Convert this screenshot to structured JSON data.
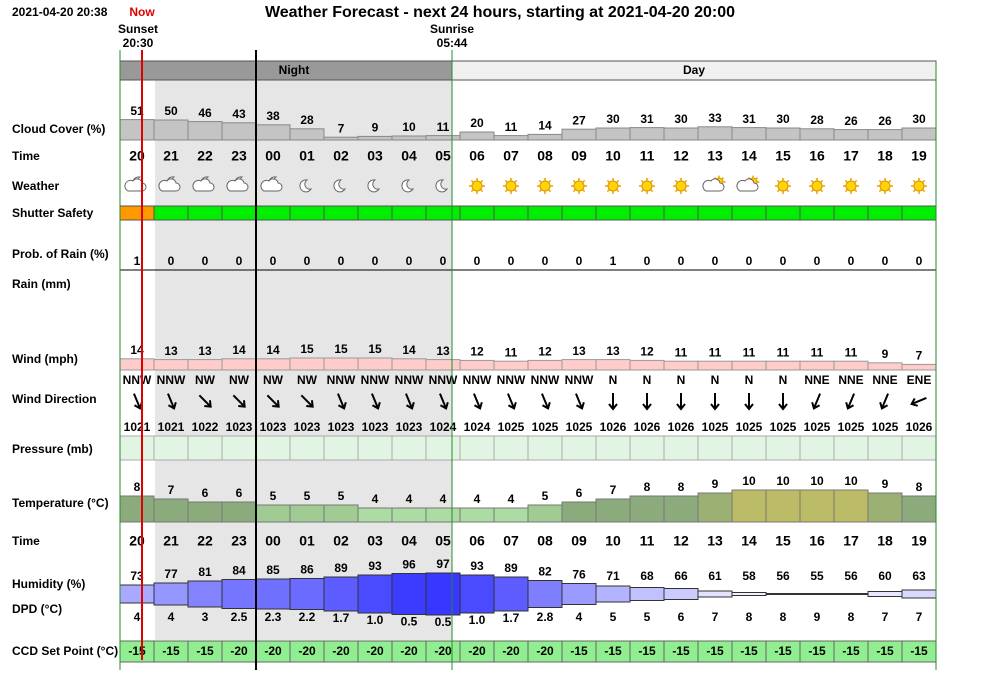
{
  "header": {
    "timestamp": "2021-04-20 20:38",
    "now": "Now",
    "title": "Weather Forecast - next 24 hours, starting at 2021-04-20 20:00"
  },
  "sunset": {
    "label": "Sunset",
    "time": "20:30"
  },
  "sunrise": {
    "label": "Sunrise",
    "time": "05:44"
  },
  "periods": {
    "night": "Night",
    "day": "Day"
  },
  "hours": [
    "20",
    "21",
    "22",
    "23",
    "00",
    "01",
    "02",
    "03",
    "04",
    "05",
    "06",
    "07",
    "08",
    "09",
    "10",
    "11",
    "12",
    "13",
    "14",
    "15",
    "16",
    "17",
    "18",
    "19"
  ],
  "rows": {
    "cloud_cover": {
      "label": "Cloud Cover (%)",
      "values": [
        51,
        50,
        46,
        43,
        38,
        28,
        7,
        9,
        10,
        11,
        20,
        11,
        14,
        27,
        30,
        31,
        30,
        33,
        31,
        30,
        28,
        26,
        26,
        30
      ]
    },
    "time": "Time",
    "weather": {
      "label": "Weather",
      "icons": [
        "partly-cloudy-night",
        "partly-cloudy-night",
        "partly-cloudy-night",
        "partly-cloudy-night",
        "partly-cloudy-night",
        "clear-night",
        "clear-night",
        "clear-night",
        "clear-night",
        "clear-night",
        "sunny",
        "sunny",
        "sunny",
        "sunny",
        "sunny",
        "sunny",
        "sunny",
        "partly-cloudy-day",
        "partly-cloudy-day",
        "sunny",
        "sunny",
        "sunny",
        "sunny",
        "sunny"
      ]
    },
    "shutter_safety": {
      "label": "Shutter Safety",
      "colors": [
        "#ff9900",
        "#00ee00",
        "#00ee00",
        "#00ee00",
        "#00ee00",
        "#00ee00",
        "#00ee00",
        "#00ee00",
        "#00ee00",
        "#00ee00",
        "#00ee00",
        "#00ee00",
        "#00ee00",
        "#00ee00",
        "#00ee00",
        "#00ee00",
        "#00ee00",
        "#00ee00",
        "#00ee00",
        "#00ee00",
        "#00ee00",
        "#00ee00",
        "#00ee00",
        "#00ee00"
      ]
    },
    "rain_probability": {
      "label": "Prob. of Rain (%)",
      "values": [
        1,
        0,
        0,
        0,
        0,
        0,
        0,
        0,
        0,
        0,
        0,
        0,
        0,
        0,
        1,
        0,
        0,
        0,
        0,
        0,
        0,
        0,
        0,
        0
      ]
    },
    "rain": {
      "label": "Rain (mm)"
    },
    "wind": {
      "label": "Wind (mph)",
      "values": [
        14,
        13,
        13,
        14,
        14,
        15,
        15,
        15,
        14,
        13,
        12,
        11,
        12,
        13,
        13,
        12,
        11,
        11,
        11,
        11,
        11,
        11,
        9,
        7
      ]
    },
    "wind_direction": {
      "label": "Wind Direction",
      "values": [
        "NNW",
        "NNW",
        "NW",
        "NW",
        "NW",
        "NW",
        "NNW",
        "NNW",
        "NNW",
        "NNW",
        "NNW",
        "NNW",
        "NNW",
        "NNW",
        "N",
        "N",
        "N",
        "N",
        "N",
        "N",
        "NNE",
        "NNE",
        "NNE",
        "ENE"
      ]
    },
    "pressure": {
      "label": "Pressure (mb)",
      "values": [
        1021,
        1021,
        1022,
        1023,
        1023,
        1023,
        1023,
        1023,
        1023,
        1024,
        1024,
        1025,
        1025,
        1025,
        1026,
        1026,
        1026,
        1025,
        1025,
        1025,
        1025,
        1025,
        1025,
        1026
      ]
    },
    "temperature": {
      "label": "Temperature (°C)",
      "values": [
        8,
        7,
        6,
        6,
        5,
        5,
        5,
        4,
        4,
        4,
        4,
        4,
        5,
        6,
        7,
        8,
        8,
        9,
        10,
        10,
        10,
        10,
        9,
        8
      ]
    },
    "humidity": {
      "label": "Humidity (%)",
      "values": [
        73,
        77,
        81,
        84,
        85,
        86,
        89,
        93,
        96,
        97,
        93,
        89,
        82,
        76,
        71,
        68,
        66,
        61,
        58,
        56,
        55,
        56,
        60,
        63
      ]
    },
    "dpd": {
      "label": "DPD (°C)",
      "values": [
        "4",
        "4",
        "3",
        "2.5",
        "2.3",
        "2.2",
        "1.7",
        "1.0",
        "0.5",
        "0.5",
        "1.0",
        "1.7",
        "2.8",
        "4",
        "5",
        "5",
        "6",
        "7",
        "8",
        "8",
        "9",
        "8",
        "7",
        "7"
      ]
    },
    "ccd_set_point": {
      "label": "CCD Set Point (°C)",
      "values": [
        -15,
        -15,
        -15,
        -20,
        -20,
        -20,
        -20,
        -20,
        -20,
        -20,
        -20,
        -20,
        -20,
        -15,
        -15,
        -15,
        -15,
        -15,
        -15,
        -15,
        -15,
        -15,
        -15,
        -15
      ]
    }
  }
}
